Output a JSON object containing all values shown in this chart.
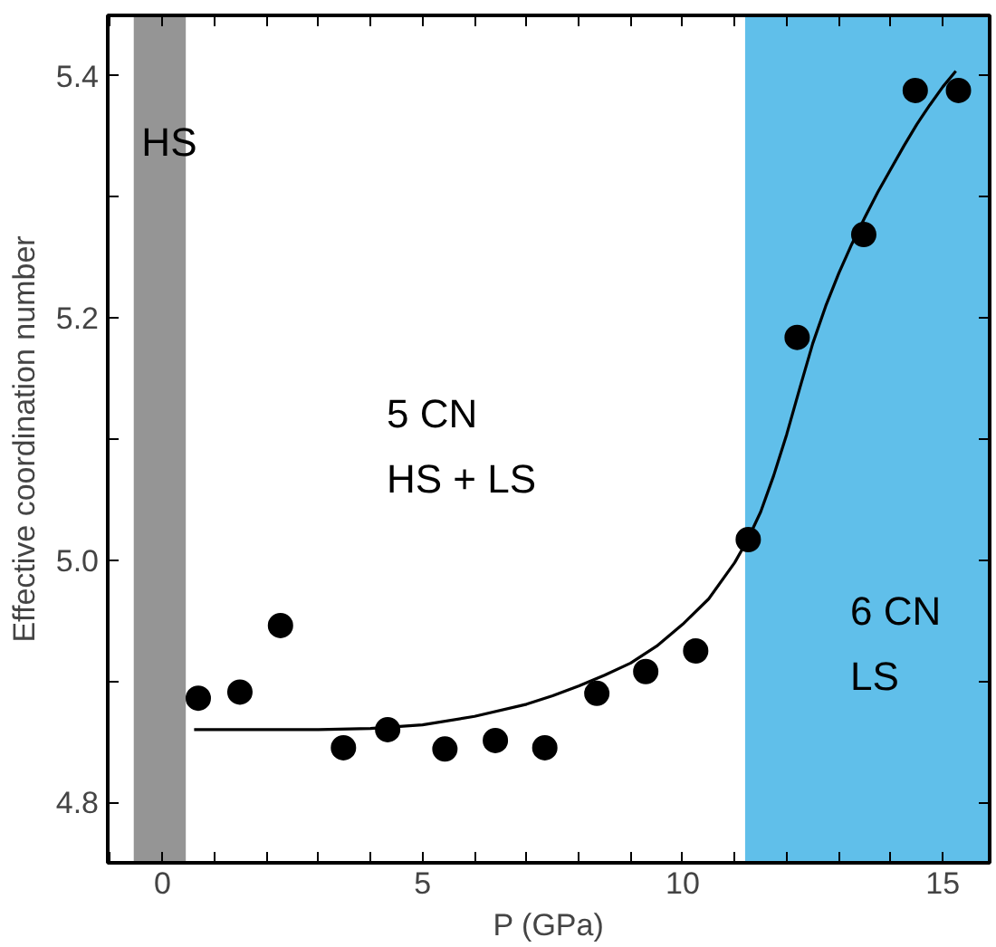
{
  "chart_data": {
    "type": "scatter",
    "xlabel": "P (GPa)",
    "ylabel": "Effective coordination number",
    "xlim": [
      -1.05,
      15.9
    ],
    "ylim": [
      4.75,
      5.45
    ],
    "xticks": [
      {
        "value": -1,
        "label": null
      },
      0,
      {
        "value": 1,
        "label": null
      },
      {
        "value": 2,
        "label": null
      },
      {
        "value": 3,
        "label": null
      },
      {
        "value": 4,
        "label": null
      },
      5,
      {
        "value": 6,
        "label": null
      },
      {
        "value": 7,
        "label": null
      },
      {
        "value": 8,
        "label": null
      },
      {
        "value": 9,
        "label": null
      },
      10,
      {
        "value": 11,
        "label": null
      },
      {
        "value": 12,
        "label": null
      },
      {
        "value": 13,
        "label": null
      },
      {
        "value": 14,
        "label": null
      },
      15
    ],
    "yticks": [
      {
        "value": 4.8,
        "label": "4.8"
      },
      {
        "value": 4.9,
        "label": null
      },
      {
        "value": 5.0,
        "label": "5.0"
      },
      {
        "value": 5.1,
        "label": null
      },
      {
        "value": 5.2,
        "label": "5.2"
      },
      {
        "value": 5.3,
        "label": null
      },
      {
        "value": 5.4,
        "label": "5.4"
      }
    ],
    "grid": false,
    "series": [
      {
        "color": "#000000",
        "marker": "circle",
        "x": [
          0.69,
          1.49,
          2.27,
          3.48,
          4.33,
          5.43,
          6.4,
          7.35,
          8.35,
          9.29,
          10.25,
          11.26,
          12.2,
          13.48,
          14.47,
          15.3
        ],
        "values": [
          4.886,
          4.891,
          4.946,
          4.845,
          4.86,
          4.844,
          4.851,
          4.845,
          4.89,
          4.908,
          4.925,
          5.017,
          5.184,
          5.269,
          5.388,
          5.388
        ]
      },
      {
        "type": "line",
        "color": "#000000",
        "line_style": "solid",
        "x": [
          0.61,
          2,
          3,
          4,
          5,
          6,
          7,
          7.5,
          8,
          8.5,
          9,
          9.5,
          10,
          10.5,
          11,
          11.25,
          11.5,
          11.75,
          12,
          12.25,
          12.5,
          12.75,
          13,
          13.25,
          13.5,
          13.75,
          14,
          14.25,
          14.5,
          14.75,
          15,
          15.25
        ],
        "values": [
          4.86,
          4.86,
          4.86,
          4.861,
          4.864,
          4.871,
          4.881,
          4.888,
          4.896,
          4.905,
          4.915,
          4.929,
          4.947,
          4.968,
          4.998,
          5.017,
          5.04,
          5.07,
          5.104,
          5.142,
          5.179,
          5.21,
          5.237,
          5.261,
          5.283,
          5.304,
          5.323,
          5.342,
          5.36,
          5.376,
          5.391,
          5.404
        ]
      }
    ],
    "bands": [
      {
        "axis": "x",
        "from": -0.55,
        "to": 0.45,
        "color": "#8a8a8a"
      },
      {
        "axis": "x",
        "from": 11.2,
        "to": 15.9,
        "color": "#4fb8e8"
      }
    ],
    "annotations": [
      {
        "text": "HS",
        "x": -0.4,
        "y": 5.345
      },
      "5 CN\nHS + LS",
      "6 CN\nLS"
    ]
  }
}
